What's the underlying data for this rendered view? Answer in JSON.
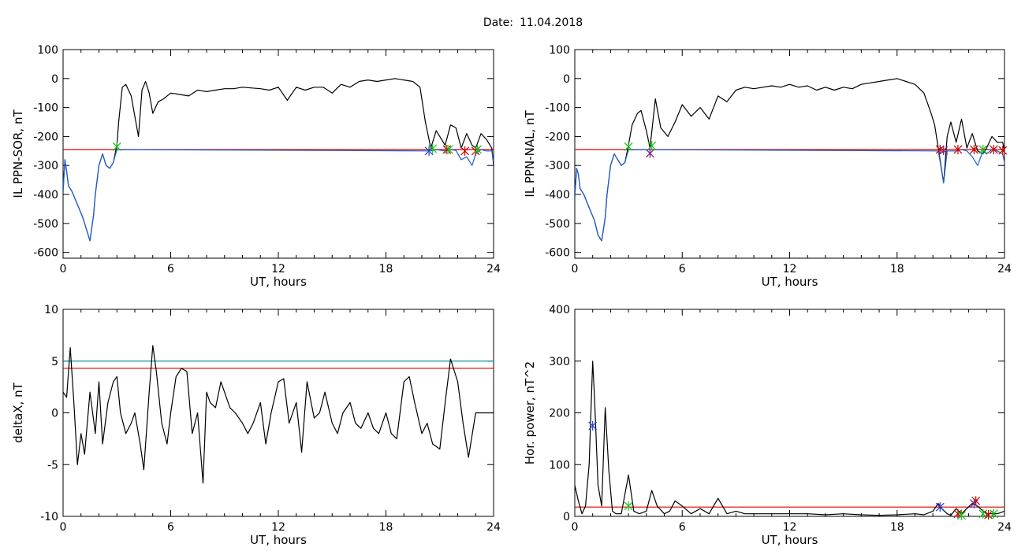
{
  "header": {
    "date_label": "Date:",
    "date_value": "11.04.2018"
  },
  "colors": {
    "signal": "#000000",
    "filtered": "#1f5fd0",
    "threshold_red": "#e00000",
    "threshold_teal": "#129a9a",
    "marker_green": "#16c016",
    "marker_blue": "#1f3fd0",
    "marker_red": "#d00000",
    "marker_purple": "#7a1f7a"
  },
  "chart_data": [
    {
      "id": "panel-sor",
      "type": "line",
      "title": "",
      "xlabel": "UT, hours",
      "ylabel": "IL PPN-SOR, nT",
      "xlim": [
        0,
        24
      ],
      "ylim": [
        -620,
        100
      ],
      "xticks": [
        0,
        6,
        12,
        18,
        24
      ],
      "yticks": [
        100,
        0,
        -100,
        -200,
        -300,
        -400,
        -500,
        -600
      ],
      "grid": false,
      "hlines": [
        {
          "y": -245,
          "color": "threshold_red"
        }
      ],
      "series": [
        {
          "color": "signal",
          "x": [
            0,
            0.1,
            0.2,
            0.3,
            0.5,
            0.7,
            0.9,
            1.1,
            1.3,
            1.5,
            1.7,
            1.8,
            2.0,
            2.2,
            2.4,
            2.6,
            2.8,
            3.0,
            3.1,
            3.3,
            3.5,
            3.8,
            4.0,
            4.2,
            4.4,
            4.6,
            4.8,
            5.0,
            5.3,
            5.6,
            6.0,
            6.5,
            7.0,
            7.5,
            8.0,
            8.5,
            9.0,
            9.5,
            10.0,
            11.0,
            11.5,
            12.0,
            12.5,
            13.0,
            13.5,
            14.0,
            14.5,
            15.0,
            15.5,
            16.0,
            16.5,
            17.0,
            17.5,
            18.0,
            18.5,
            19.0,
            19.5,
            19.9,
            20.2,
            20.5,
            20.8,
            21.0,
            21.3,
            21.6,
            21.9,
            22.2,
            22.5,
            22.8,
            23.0,
            23.3,
            23.6,
            23.9,
            24.0
          ],
          "y": [
            -390,
            -280,
            -320,
            -370,
            -390,
            -420,
            -450,
            -480,
            -520,
            -560,
            -470,
            -400,
            -300,
            -260,
            -300,
            -310,
            -290,
            -230,
            -150,
            -30,
            -20,
            -60,
            -130,
            -200,
            -40,
            -10,
            -50,
            -120,
            -80,
            -70,
            -50,
            -55,
            -60,
            -40,
            -45,
            -40,
            -35,
            -35,
            -30,
            -35,
            -40,
            -30,
            -75,
            -30,
            -40,
            -30,
            -30,
            -50,
            -20,
            -30,
            -10,
            -5,
            -10,
            -5,
            0,
            -5,
            -10,
            -30,
            -150,
            -240,
            -180,
            -200,
            -230,
            -160,
            -170,
            -240,
            -190,
            -230,
            -240,
            -190,
            -210,
            -240,
            -300
          ]
        },
        {
          "color": "filtered",
          "x": [
            0,
            0.1,
            0.2,
            0.3,
            0.5,
            0.7,
            0.9,
            1.1,
            1.3,
            1.5,
            1.7,
            1.8,
            2.0,
            2.2,
            2.4,
            2.6,
            2.8,
            3.0,
            20.5,
            20.8,
            21.3,
            21.6,
            21.9,
            22.2,
            22.5,
            22.8,
            23.0,
            23.3,
            23.6,
            23.9,
            24.0
          ],
          "y": [
            -390,
            -280,
            -320,
            -370,
            -390,
            -420,
            -450,
            -480,
            -520,
            -560,
            -470,
            -400,
            -300,
            -260,
            -300,
            -310,
            -290,
            -245,
            -250,
            -245,
            -250,
            -245,
            -248,
            -280,
            -270,
            -300,
            -260,
            -245,
            -250,
            -250,
            -290
          ]
        }
      ],
      "markers": [
        {
          "x": 3.0,
          "y": -235,
          "color": "marker_green"
        },
        {
          "x": 20.4,
          "y": -250,
          "color": "marker_blue"
        },
        {
          "x": 20.6,
          "y": -242,
          "color": "marker_green"
        },
        {
          "x": 21.4,
          "y": -245,
          "color": "marker_red"
        },
        {
          "x": 21.5,
          "y": -245,
          "color": "marker_green"
        },
        {
          "x": 22.4,
          "y": -250,
          "color": "marker_red"
        },
        {
          "x": 23.0,
          "y": -250,
          "color": "marker_red"
        },
        {
          "x": 23.1,
          "y": -245,
          "color": "marker_green"
        }
      ]
    },
    {
      "id": "panel-nal",
      "type": "line",
      "title": "",
      "xlabel": "UT, hours",
      "ylabel": "IL PPN-NAL, nT",
      "xlim": [
        0,
        24
      ],
      "ylim": [
        -620,
        100
      ],
      "xticks": [
        0,
        6,
        12,
        18,
        24
      ],
      "yticks": [
        100,
        0,
        -100,
        -200,
        -300,
        -400,
        -500,
        -600
      ],
      "grid": false,
      "hlines": [
        {
          "y": -245,
          "color": "threshold_red"
        }
      ],
      "series": [
        {
          "color": "signal",
          "x": [
            0,
            0.1,
            0.2,
            0.3,
            0.5,
            0.7,
            0.9,
            1.1,
            1.3,
            1.5,
            1.7,
            1.8,
            2.0,
            2.2,
            2.4,
            2.6,
            2.8,
            3.0,
            3.2,
            3.5,
            3.7,
            4.0,
            4.2,
            4.5,
            4.8,
            5.2,
            5.6,
            6.0,
            6.5,
            7.0,
            7.5,
            8.0,
            8.5,
            9.0,
            9.5,
            10.0,
            11.0,
            11.5,
            12.0,
            12.5,
            13.0,
            13.5,
            14.0,
            14.5,
            15.0,
            15.5,
            16.0,
            16.5,
            17.0,
            17.5,
            18.0,
            18.5,
            19.0,
            19.5,
            19.9,
            20.1,
            20.3,
            20.6,
            20.8,
            21.0,
            21.3,
            21.6,
            21.9,
            22.2,
            22.5,
            22.8,
            23.0,
            23.3,
            23.6,
            23.9,
            24.0
          ],
          "y": [
            -410,
            -310,
            -330,
            -380,
            -400,
            -430,
            -460,
            -490,
            -540,
            -560,
            -480,
            -400,
            -300,
            -260,
            -280,
            -300,
            -290,
            -230,
            -160,
            -120,
            -110,
            -180,
            -240,
            -70,
            -170,
            -200,
            -150,
            -90,
            -130,
            -100,
            -140,
            -60,
            -80,
            -40,
            -30,
            -35,
            -25,
            -30,
            -20,
            -30,
            -25,
            -40,
            -30,
            -40,
            -30,
            -35,
            -20,
            -15,
            -10,
            -5,
            0,
            -10,
            -20,
            -50,
            -120,
            -160,
            -240,
            -360,
            -200,
            -150,
            -220,
            -140,
            -240,
            -190,
            -250,
            -260,
            -240,
            -200,
            -220,
            -220,
            -250
          ]
        },
        {
          "color": "filtered",
          "x": [
            0,
            0.1,
            0.2,
            0.3,
            0.5,
            0.7,
            0.9,
            1.1,
            1.3,
            1.5,
            1.7,
            1.8,
            2.0,
            2.2,
            2.4,
            2.6,
            2.8,
            3.0,
            20.3,
            20.6,
            20.8,
            21.3,
            21.6,
            21.9,
            22.2,
            22.5,
            22.8,
            23.0,
            23.3,
            23.6,
            23.9,
            24.0
          ],
          "y": [
            -410,
            -310,
            -330,
            -380,
            -400,
            -430,
            -460,
            -490,
            -540,
            -560,
            -480,
            -400,
            -300,
            -260,
            -280,
            -300,
            -290,
            -245,
            -250,
            -360,
            -250,
            -250,
            -245,
            -250,
            -270,
            -300,
            -250,
            -260,
            -245,
            -250,
            -260,
            -290
          ]
        }
      ],
      "markers": [
        {
          "x": 3.0,
          "y": -235,
          "color": "marker_green"
        },
        {
          "x": 4.2,
          "y": -258,
          "color": "marker_purple"
        },
        {
          "x": 4.3,
          "y": -232,
          "color": "marker_green"
        },
        {
          "x": 20.4,
          "y": -245,
          "color": "marker_red"
        },
        {
          "x": 20.6,
          "y": -248,
          "color": "marker_purple"
        },
        {
          "x": 21.4,
          "y": -245,
          "color": "marker_red"
        },
        {
          "x": 22.3,
          "y": -245,
          "color": "marker_red"
        },
        {
          "x": 22.8,
          "y": -245,
          "color": "marker_green"
        },
        {
          "x": 23.4,
          "y": -245,
          "color": "marker_red"
        },
        {
          "x": 23.9,
          "y": -248,
          "color": "marker_red"
        }
      ]
    },
    {
      "id": "panel-deltax",
      "type": "line",
      "title": "",
      "xlabel": "UT, hours",
      "ylabel": "deltaX, nT",
      "xlim": [
        0,
        24
      ],
      "ylim": [
        -10,
        10
      ],
      "xticks": [
        0,
        6,
        12,
        18,
        24
      ],
      "yticks": [
        10,
        5,
        0,
        -5,
        -10
      ],
      "grid": false,
      "hlines": [
        {
          "y": 5,
          "color": "threshold_teal"
        },
        {
          "y": 4.3,
          "color": "threshold_red"
        }
      ],
      "series": [
        {
          "color": "signal",
          "x": [
            0,
            0.2,
            0.4,
            0.6,
            0.8,
            1.0,
            1.2,
            1.5,
            1.8,
            2.0,
            2.2,
            2.5,
            2.8,
            3.0,
            3.2,
            3.5,
            3.8,
            4.0,
            4.3,
            4.5,
            4.8,
            5.0,
            5.2,
            5.5,
            5.8,
            6.0,
            6.3,
            6.6,
            6.9,
            7.2,
            7.5,
            7.8,
            8.0,
            8.2,
            8.5,
            8.8,
            9.0,
            9.3,
            9.6,
            10.0,
            10.3,
            10.6,
            11.0,
            11.3,
            11.6,
            12.0,
            12.3,
            12.6,
            13.0,
            13.3,
            13.6,
            14.0,
            14.3,
            14.6,
            15.0,
            15.3,
            15.6,
            16.0,
            16.3,
            16.6,
            17.0,
            17.3,
            17.6,
            18.0,
            18.3,
            18.6,
            19.0,
            19.3,
            19.6,
            20.0,
            20.3,
            20.6,
            21.0,
            21.3,
            21.6,
            22.0,
            22.3,
            22.6,
            23.0,
            23.3,
            23.6,
            24.0
          ],
          "y": [
            2,
            1.5,
            6.3,
            1,
            -5,
            -2,
            -4,
            2,
            -2,
            3,
            -3,
            1,
            3,
            3.5,
            0,
            -2,
            -1,
            0,
            -3,
            -5.5,
            2,
            6.5,
            4,
            -1,
            -3,
            0,
            3.5,
            4.3,
            4,
            -2,
            0,
            -6.8,
            2,
            1,
            0.5,
            3,
            2,
            0.5,
            0,
            -1,
            -2,
            -1,
            1,
            -3,
            0,
            3,
            3.3,
            -1,
            1,
            -3.8,
            3,
            -0.5,
            0,
            2,
            -1,
            -2,
            0,
            1,
            -1,
            -1.5,
            0,
            -1.5,
            -2,
            0,
            -2,
            -2.5,
            3,
            3.5,
            1,
            -2,
            -1,
            -3,
            -3.5,
            1,
            5.2,
            3,
            -1,
            -4.3,
            0,
            0,
            0,
            0
          ]
        }
      ],
      "markers": []
    },
    {
      "id": "panel-power",
      "type": "line",
      "title": "",
      "xlabel": "UT, hours",
      "ylabel": "Hor. power, nT^2",
      "xlim": [
        0,
        24
      ],
      "ylim": [
        0,
        400
      ],
      "xticks": [
        0,
        6,
        12,
        18,
        24
      ],
      "yticks": [
        400,
        300,
        200,
        100,
        0
      ],
      "grid": false,
      "hlines": [
        {
          "y": 18,
          "color": "threshold_red"
        }
      ],
      "series": [
        {
          "color": "signal",
          "x": [
            0,
            0.2,
            0.4,
            0.6,
            0.8,
            1.0,
            1.1,
            1.3,
            1.5,
            1.7,
            1.9,
            2.1,
            2.3,
            2.6,
            3.0,
            3.3,
            3.6,
            4.0,
            4.3,
            4.6,
            5.0,
            5.3,
            5.6,
            6.0,
            6.5,
            7.0,
            7.5,
            8.0,
            8.5,
            9.0,
            9.5,
            10.0,
            11.0,
            12.0,
            13.0,
            14.0,
            15.0,
            16.0,
            17.0,
            18.0,
            19.0,
            19.5,
            20.0,
            20.3,
            20.5,
            20.8,
            21.0,
            21.3,
            21.6,
            21.9,
            22.2,
            22.5,
            22.8,
            23.0,
            23.3,
            23.6,
            24.0
          ],
          "y": [
            60,
            30,
            5,
            20,
            100,
            300,
            230,
            60,
            20,
            210,
            90,
            10,
            5,
            5,
            80,
            10,
            5,
            10,
            50,
            20,
            5,
            10,
            30,
            20,
            5,
            15,
            5,
            35,
            5,
            10,
            5,
            5,
            5,
            5,
            5,
            3,
            5,
            3,
            2,
            3,
            5,
            3,
            10,
            25,
            15,
            5,
            2,
            15,
            5,
            15,
            25,
            20,
            10,
            5,
            5,
            5,
            10
          ]
        }
      ],
      "markers": [
        {
          "x": 1.0,
          "y": 175,
          "color": "marker_blue"
        },
        {
          "x": 3.0,
          "y": 20,
          "color": "marker_green"
        },
        {
          "x": 20.4,
          "y": 18,
          "color": "marker_blue"
        },
        {
          "x": 21.4,
          "y": 5,
          "color": "marker_red"
        },
        {
          "x": 21.6,
          "y": 2,
          "color": "marker_green"
        },
        {
          "x": 22.3,
          "y": 25,
          "color": "marker_blue"
        },
        {
          "x": 22.4,
          "y": 30,
          "color": "marker_red"
        },
        {
          "x": 22.8,
          "y": 5,
          "color": "marker_green"
        },
        {
          "x": 23.1,
          "y": 3,
          "color": "marker_red"
        },
        {
          "x": 23.4,
          "y": 5,
          "color": "marker_green"
        }
      ]
    }
  ]
}
